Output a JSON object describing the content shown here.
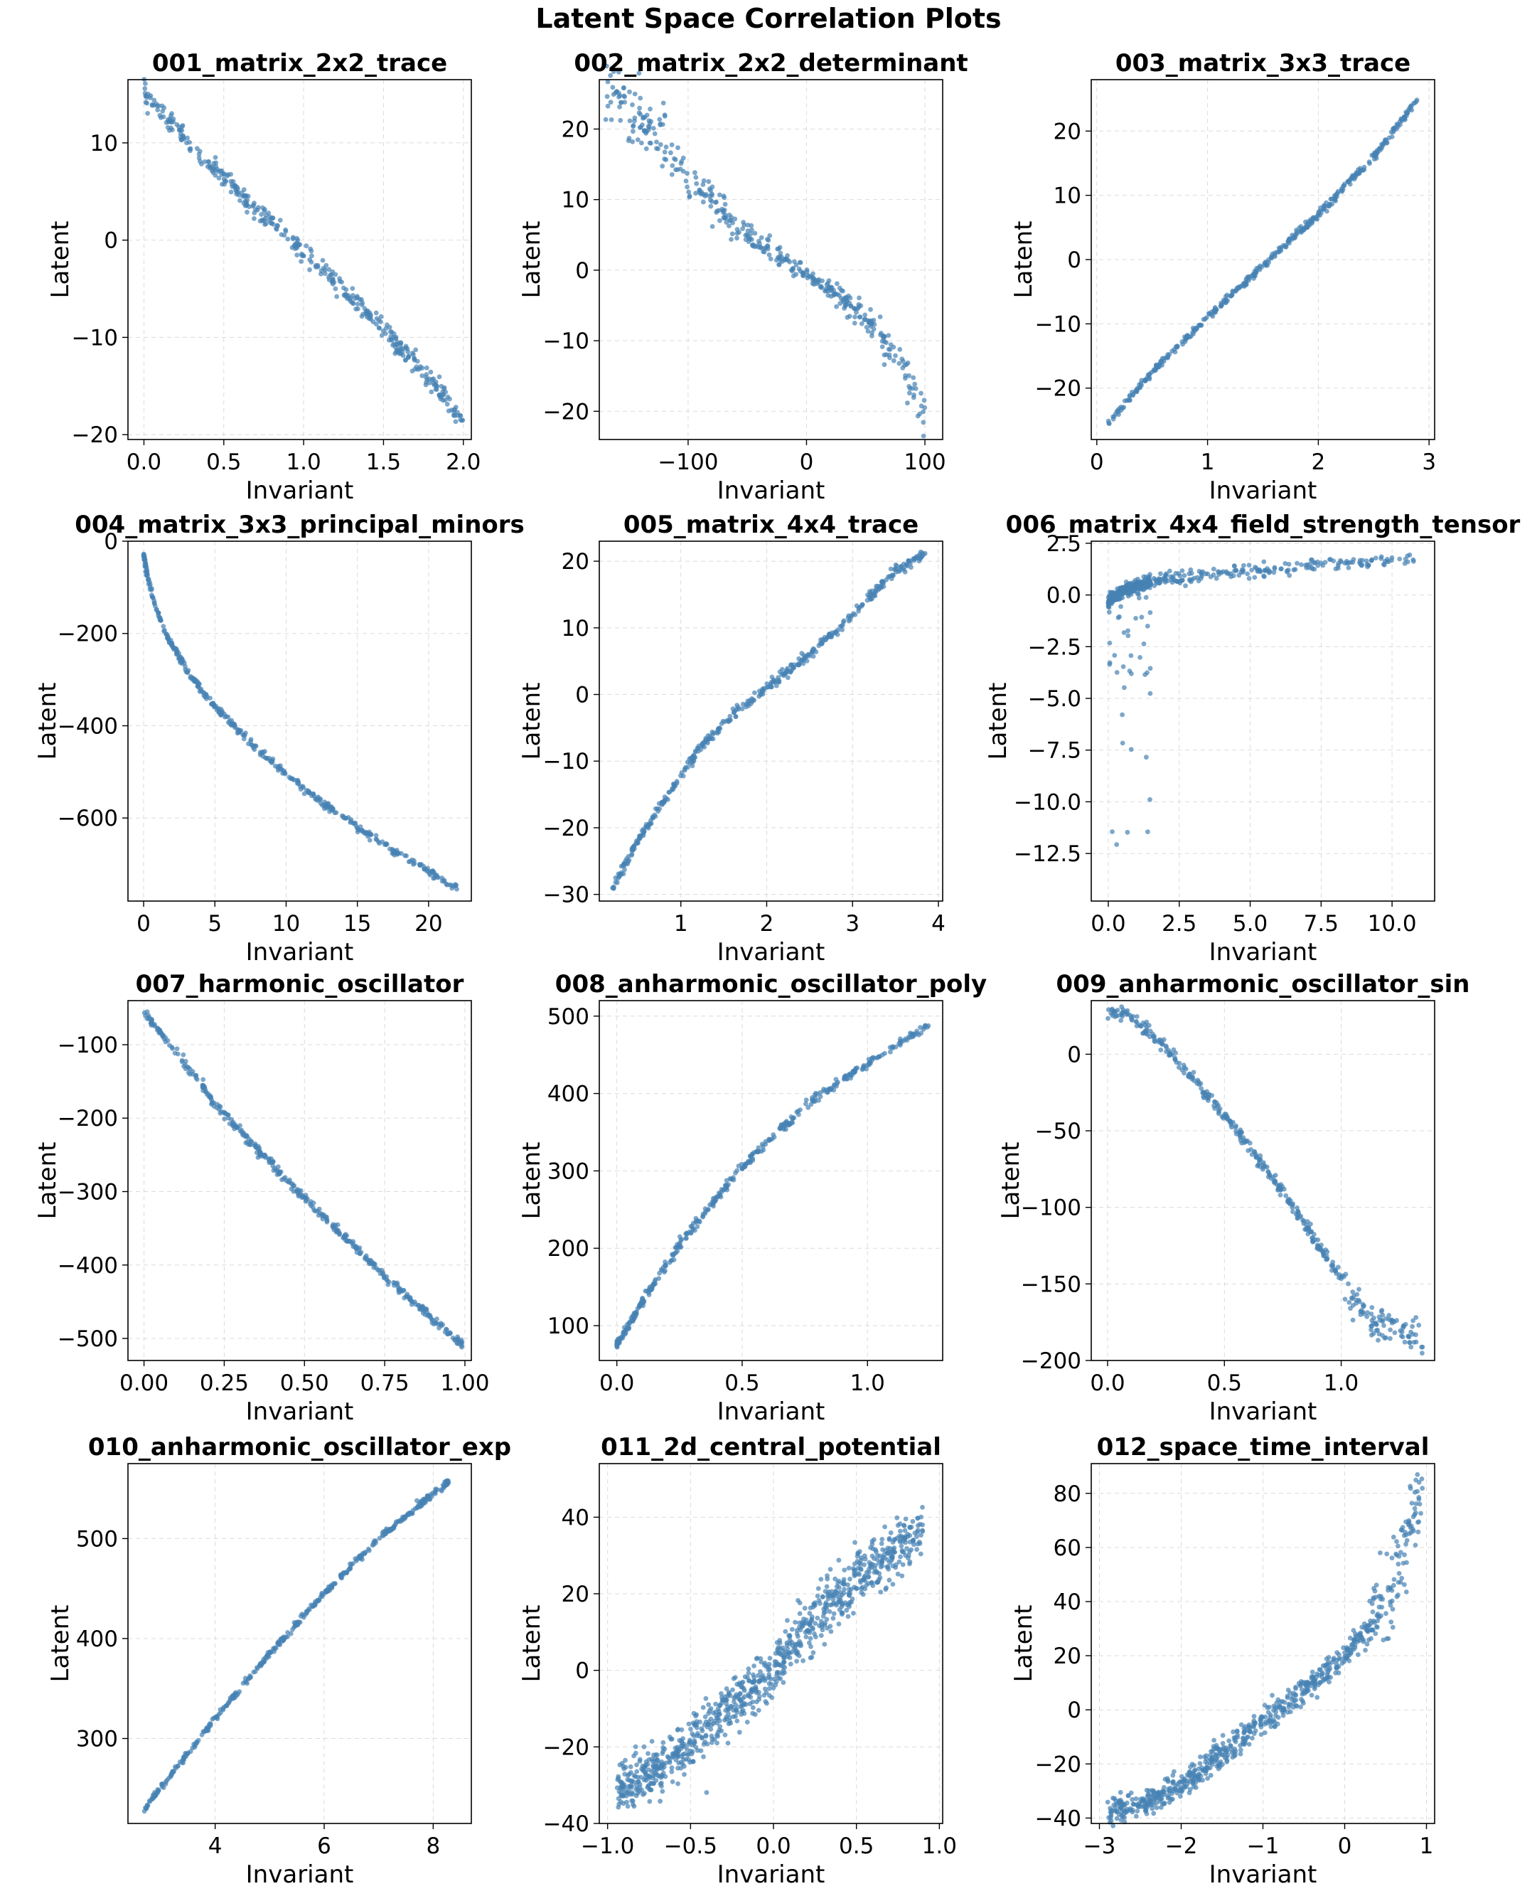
{
  "figure": {
    "title": "Latent Space Correlation Plots",
    "marker_color": "#4682b4"
  },
  "chart_data": [
    {
      "type": "scatter",
      "title": "001_matrix_2x2_trace",
      "xlabel": "Invariant",
      "ylabel": "Latent",
      "xlim": [
        -0.1,
        2.05
      ],
      "ylim": [
        -20.5,
        16.5
      ],
      "grid": true,
      "xticks": [
        0.0,
        0.5,
        1.0,
        1.5,
        2.0
      ],
      "xtick_labels": [
        "0.0",
        "0.5",
        "1.0",
        "1.5",
        "2.0"
      ],
      "yticks": [
        -20,
        -10,
        0,
        10
      ],
      "ytick_labels": [
        "−20",
        "−10",
        "0",
        "10"
      ],
      "curve": [
        [
          0.0,
          15.2
        ],
        [
          0.25,
          10.5
        ],
        [
          0.5,
          6.3
        ],
        [
          0.75,
          2.5
        ],
        [
          1.0,
          -1.2
        ],
        [
          1.25,
          -5.0
        ],
        [
          1.5,
          -9.2
        ],
        [
          1.75,
          -13.5
        ],
        [
          2.0,
          -18.5
        ]
      ],
      "points_estimated": 400,
      "spread": 0.5
    },
    {
      "type": "scatter",
      "title": "002_matrix_2x2_determinant",
      "xlabel": "Invariant",
      "ylabel": "Latent",
      "xlim": [
        -175,
        115
      ],
      "ylim": [
        -24,
        27
      ],
      "grid": true,
      "xticks": [
        -100,
        0,
        100
      ],
      "xtick_labels": [
        "−100",
        "0",
        "100"
      ],
      "yticks": [
        -20,
        -10,
        0,
        10,
        20
      ],
      "ytick_labels": [
        "−20",
        "−10",
        "0",
        "10",
        "20"
      ],
      "curve": [
        [
          -170,
          26
        ],
        [
          -140,
          21
        ],
        [
          -120,
          17.5
        ],
        [
          -100,
          13
        ],
        [
          -80,
          9
        ],
        [
          -60,
          6
        ],
        [
          -30,
          2.8
        ],
        [
          0,
          -0.5
        ],
        [
          30,
          -4.0
        ],
        [
          50,
          -7.0
        ],
        [
          70,
          -11
        ],
        [
          85,
          -15
        ],
        [
          100,
          -20.5
        ]
      ],
      "points_estimated": 400,
      "spread": 1.0
    },
    {
      "type": "scatter",
      "title": "003_matrix_3x3_trace",
      "xlabel": "Invariant",
      "ylabel": "Latent",
      "xlim": [
        -0.05,
        3.05
      ],
      "ylim": [
        -28,
        28
      ],
      "grid": true,
      "xticks": [
        0,
        1,
        2,
        3
      ],
      "xtick_labels": [
        "0",
        "1",
        "2",
        "3"
      ],
      "yticks": [
        -20,
        -10,
        0,
        10,
        20
      ],
      "ytick_labels": [
        "−20",
        "−10",
        "0",
        "10",
        "20"
      ],
      "curve": [
        [
          0.1,
          -25.5
        ],
        [
          0.5,
          -17.5
        ],
        [
          1.0,
          -9.0
        ],
        [
          1.5,
          -1.0
        ],
        [
          2.0,
          7.0
        ],
        [
          2.5,
          16.0
        ],
        [
          2.9,
          25.0
        ]
      ],
      "points_estimated": 400,
      "spread": 0.3
    },
    {
      "type": "scatter",
      "title": "004_matrix_3x3_principal_minors",
      "xlabel": "Invariant",
      "ylabel": "Latent",
      "xlim": [
        -1.1,
        23
      ],
      "ylim": [
        -780,
        0
      ],
      "grid": true,
      "xticks": [
        0,
        5,
        10,
        15,
        20
      ],
      "xtick_labels": [
        "0",
        "5",
        "10",
        "15",
        "20"
      ],
      "yticks": [
        -600,
        -400,
        -200,
        0
      ],
      "ytick_labels": [
        "−600",
        "−400",
        "−200",
        "0"
      ],
      "curve": [
        [
          0.0,
          -30
        ],
        [
          0.3,
          -80
        ],
        [
          0.8,
          -140
        ],
        [
          1.5,
          -195
        ],
        [
          3.0,
          -280
        ],
        [
          5.0,
          -360
        ],
        [
          8.0,
          -450
        ],
        [
          10.0,
          -505
        ],
        [
          12.5,
          -565
        ],
        [
          15.0,
          -620
        ],
        [
          17.5,
          -670
        ],
        [
          20.0,
          -715
        ],
        [
          22.0,
          -755
        ]
      ],
      "points_estimated": 400,
      "spread": 4
    },
    {
      "type": "scatter",
      "title": "005_matrix_4x4_trace",
      "xlabel": "Invariant",
      "ylabel": "Latent",
      "xlim": [
        0.05,
        4.05
      ],
      "ylim": [
        -31,
        23
      ],
      "grid": true,
      "xticks": [
        1,
        2,
        3,
        4
      ],
      "xtick_labels": [
        "1",
        "2",
        "3",
        "4"
      ],
      "yticks": [
        -30,
        -20,
        -10,
        0,
        10,
        20
      ],
      "ytick_labels": [
        "−30",
        "−20",
        "−10",
        "0",
        "10",
        "20"
      ],
      "curve": [
        [
          0.2,
          -29
        ],
        [
          0.5,
          -22
        ],
        [
          0.8,
          -16
        ],
        [
          1.2,
          -8.5
        ],
        [
          1.6,
          -3.0
        ],
        [
          2.0,
          1.0
        ],
        [
          2.5,
          6.0
        ],
        [
          3.0,
          12.0
        ],
        [
          3.5,
          18.5
        ],
        [
          3.85,
          21.0
        ]
      ],
      "points_estimated": 400,
      "spread": 0.4
    },
    {
      "type": "scatter",
      "title": "006_matrix_4x4_field_strength_tensor",
      "xlabel": "Invariant",
      "ylabel": "Latent",
      "xlim": [
        -0.6,
        11.5
      ],
      "ylim": [
        -14.8,
        2.6
      ],
      "grid": true,
      "xticks": [
        0.0,
        2.5,
        5.0,
        7.5,
        10.0
      ],
      "xtick_labels": [
        "0.0",
        "2.5",
        "5.0",
        "7.5",
        "10.0"
      ],
      "yticks": [
        -12.5,
        -10.0,
        -7.5,
        -5.0,
        -2.5,
        0.0,
        2.5
      ],
      "ytick_labels": [
        "−12.5",
        "−10.0",
        "−7.5",
        "−5.0",
        "−2.5",
        "0.0",
        "2.5"
      ],
      "curve": [
        [
          0.0,
          -0.3
        ],
        [
          0.5,
          0.2
        ],
        [
          1.0,
          0.45
        ],
        [
          2.0,
          0.75
        ],
        [
          3.0,
          0.95
        ],
        [
          4.0,
          1.1
        ],
        [
          5.0,
          1.2
        ],
        [
          6.5,
          1.35
        ],
        [
          8.0,
          1.5
        ],
        [
          9.0,
          1.6
        ],
        [
          10.8,
          1.8
        ]
      ],
      "points_estimated": 500,
      "spread": 0.15
    },
    {
      "type": "scatter",
      "title": "007_harmonic_oscillator",
      "xlabel": "Invariant",
      "ylabel": "Latent",
      "xlim": [
        -0.05,
        1.02
      ],
      "ylim": [
        -530,
        -40
      ],
      "grid": true,
      "xticks": [
        0.0,
        0.25,
        0.5,
        0.75,
        1.0
      ],
      "xtick_labels": [
        "0.00",
        "0.25",
        "0.50",
        "0.75",
        "1.00"
      ],
      "yticks": [
        -500,
        -400,
        -300,
        -200,
        -100
      ],
      "ytick_labels": [
        "−500",
        "−400",
        "−300",
        "−200",
        "−100"
      ],
      "curve": [
        [
          0.0,
          -55
        ],
        [
          0.25,
          -195
        ],
        [
          0.5,
          -310
        ],
        [
          0.75,
          -415
        ],
        [
          1.0,
          -512
        ]
      ],
      "points_estimated": 400,
      "spread": 3
    },
    {
      "type": "scatter",
      "title": "008_anharmonic_oscillator_poly",
      "xlabel": "Invariant",
      "ylabel": "Latent",
      "xlim": [
        -0.07,
        1.3
      ],
      "ylim": [
        55,
        520
      ],
      "grid": true,
      "xticks": [
        0.0,
        0.5,
        1.0
      ],
      "xtick_labels": [
        "0.0",
        "0.5",
        "1.0"
      ],
      "yticks": [
        100,
        200,
        300,
        400,
        500
      ],
      "ytick_labels": [
        "100",
        "200",
        "300",
        "400",
        "500"
      ],
      "curve": [
        [
          0.0,
          75
        ],
        [
          0.1,
          130
        ],
        [
          0.25,
          205
        ],
        [
          0.5,
          305
        ],
        [
          0.75,
          385
        ],
        [
          1.0,
          440
        ],
        [
          1.25,
          490
        ]
      ],
      "points_estimated": 400,
      "spread": 3
    },
    {
      "type": "scatter",
      "title": "009_anharmonic_oscillator_sin",
      "xlabel": "Invariant",
      "ylabel": "Latent",
      "xlim": [
        -0.07,
        1.4
      ],
      "ylim": [
        -200,
        35
      ],
      "grid": true,
      "xticks": [
        0.0,
        0.5,
        1.0
      ],
      "xtick_labels": [
        "0.0",
        "0.5",
        "1.0"
      ],
      "yticks": [
        -200,
        -150,
        -100,
        -50,
        0
      ],
      "ytick_labels": [
        "−200",
        "−150",
        "−100",
        "−50",
        "0"
      ],
      "curve": [
        [
          0.0,
          28
        ],
        [
          0.1,
          24
        ],
        [
          0.25,
          5
        ],
        [
          0.5,
          -40
        ],
        [
          0.75,
          -90
        ],
        [
          0.95,
          -135
        ],
        [
          1.05,
          -160
        ],
        [
          1.15,
          -175
        ],
        [
          1.35,
          -185
        ]
      ],
      "points_estimated": 400,
      "spread": 2
    },
    {
      "type": "scatter",
      "title": "010_anharmonic_oscillator_exp",
      "xlabel": "Invariant",
      "ylabel": "Latent",
      "xlim": [
        2.4,
        8.7
      ],
      "ylim": [
        215,
        575
      ],
      "grid": true,
      "xticks": [
        4,
        6,
        8
      ],
      "xtick_labels": [
        "4",
        "6",
        "8"
      ],
      "yticks": [
        300,
        400,
        500
      ],
      "ytick_labels": [
        "300",
        "400",
        "500"
      ],
      "curve": [
        [
          2.7,
          228
        ],
        [
          3.0,
          250
        ],
        [
          4.0,
          320
        ],
        [
          5.0,
          385
        ],
        [
          6.0,
          445
        ],
        [
          7.0,
          500
        ],
        [
          8.0,
          545
        ],
        [
          8.3,
          558
        ]
      ],
      "points_estimated": 400,
      "spread": 1.5
    },
    {
      "type": "scatter",
      "title": "011_2d_central_potential",
      "xlabel": "Invariant",
      "ylabel": "Latent",
      "xlim": [
        -1.05,
        1.02
      ],
      "ylim": [
        -40,
        54
      ],
      "grid": true,
      "xticks": [
        -1.0,
        -0.5,
        0.0,
        0.5,
        1.0
      ],
      "xtick_labels": [
        "−1.0",
        "−0.5",
        "0.0",
        "0.5",
        "1.0"
      ],
      "yticks": [
        -40,
        -20,
        0,
        20,
        40
      ],
      "ytick_labels": [
        "−40",
        "−20",
        "0",
        "20",
        "40"
      ],
      "curve": [
        [
          -0.95,
          -31
        ],
        [
          -0.7,
          -26
        ],
        [
          -0.5,
          -19
        ],
        [
          -0.3,
          -11
        ],
        [
          0.0,
          0
        ],
        [
          0.2,
          12
        ],
        [
          0.4,
          20
        ],
        [
          0.6,
          27
        ],
        [
          0.9,
          36
        ]
      ],
      "points_estimated": 900,
      "spread": 3.5
    },
    {
      "type": "scatter",
      "title": "012_space_time_interval",
      "xlabel": "Invariant",
      "ylabel": "Latent",
      "xlim": [
        -3.1,
        1.1
      ],
      "ylim": [
        -42,
        91
      ],
      "grid": true,
      "xticks": [
        -3,
        -2,
        -1,
        0,
        1
      ],
      "xtick_labels": [
        "−3",
        "−2",
        "−1",
        "0",
        "1"
      ],
      "yticks": [
        -40,
        -20,
        0,
        20,
        40,
        60,
        80
      ],
      "ytick_labels": [
        "−40",
        "−20",
        "0",
        "20",
        "40",
        "60",
        "80"
      ],
      "curve": [
        [
          -2.9,
          -38
        ],
        [
          -2.5,
          -35
        ],
        [
          -2.0,
          -28
        ],
        [
          -1.5,
          -16
        ],
        [
          -1.0,
          -4
        ],
        [
          -0.5,
          7
        ],
        [
          0.0,
          20
        ],
        [
          0.3,
          30
        ],
        [
          0.5,
          40
        ],
        [
          0.7,
          55
        ],
        [
          0.85,
          72
        ],
        [
          0.95,
          85
        ]
      ],
      "points_estimated": 700,
      "spread": 2.5
    }
  ]
}
